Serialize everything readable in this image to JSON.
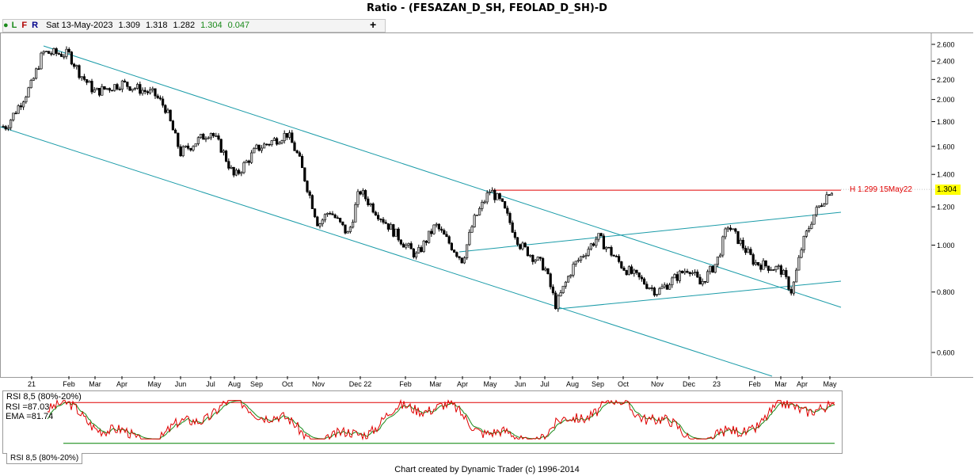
{
  "title": "Ratio - (FESAZAN_D_SH, FEOLAD_D_SH)-D",
  "infobar": {
    "lfr": [
      "L",
      "F",
      "R"
    ],
    "date": "Sat 13-May-2023",
    "open": "1.309",
    "high": "1.318",
    "low": "1.282",
    "close": "1.304",
    "change": "0.047"
  },
  "plus_label": "+",
  "high_marker": "H 1.299 15May22",
  "current_price": "1.304",
  "rsi": {
    "header": "RSI 8,5 (80%-20%)",
    "rsi_label": "RSI =87.03",
    "ema_label": "EMA =81.74",
    "tab": "RSI 8,5 (80%-20%)"
  },
  "footer": "Chart created by Dynamic Trader  (c) 1996-2014",
  "colors": {
    "bull": "#c8c8c8",
    "bear": "#000000",
    "channel": "#1a9ba8",
    "high_line": "#e00000",
    "rsi_line": "#e00000",
    "ema_line": "#1a8a1a",
    "band_high": "#e00000",
    "band_low": "#008000",
    "current": "#ffff00"
  },
  "chart_data": {
    "type": "candlestick",
    "scale": "log",
    "y_ticks": [
      "2.600",
      "2.400",
      "2.200",
      "2.000",
      "1.800",
      "1.600",
      "1.400",
      "1.200",
      "1.000",
      "0.800",
      "0.600"
    ],
    "y_tick_values": [
      2.6,
      2.4,
      2.2,
      2.0,
      1.8,
      1.6,
      1.4,
      1.2,
      1.0,
      0.8,
      0.6
    ],
    "x_labels": [
      "21",
      "Feb",
      "Mar",
      "Apr",
      "May",
      "Jun",
      "Jul",
      "Aug",
      "Sep",
      "Oct",
      "Nov",
      "Dec 22",
      "Feb",
      "Mar",
      "Apr",
      "May",
      "Jun",
      "Jul",
      "Aug",
      "Sep",
      "Oct",
      "Nov",
      "Dec",
      "23",
      "Feb",
      "Mar",
      "Apr",
      "May"
    ],
    "price_path": [
      [
        "Dec 2020",
        1.76
      ],
      [
        "Jan 2021",
        2.15
      ],
      [
        "Jan 2021",
        2.5
      ],
      [
        "Feb 2021",
        2.48
      ],
      [
        "Feb 2021",
        2.26
      ],
      [
        "Mar 2021",
        2.07
      ],
      [
        "Apr 2021",
        2.16
      ],
      [
        "May 2021",
        2.05
      ],
      [
        "May 2021",
        1.92
      ],
      [
        "Jun 2021",
        1.55
      ],
      [
        "Jul 2021",
        1.72
      ],
      [
        "Jul 2021",
        1.58
      ],
      [
        "Aug 2021",
        1.38
      ],
      [
        "Sep 2021",
        1.58
      ],
      [
        "Oct 2021",
        1.7
      ],
      [
        "Oct 2021",
        1.52
      ],
      [
        "Nov 2021",
        1.1
      ],
      [
        "Nov 2021",
        1.18
      ],
      [
        "Dec 2021",
        1.05
      ],
      [
        "Dec 2021",
        1.3
      ],
      [
        "Jan 2022",
        1.2
      ],
      [
        "Feb 2022",
        1.0
      ],
      [
        "Feb 2022",
        0.95
      ],
      [
        "Mar 2022",
        1.1
      ],
      [
        "Apr 2022",
        0.93
      ],
      [
        "Apr 2022",
        1.12
      ],
      [
        "May 2022",
        1.3
      ],
      [
        "May 2022",
        1.22
      ],
      [
        "Jun 2022",
        1.0
      ],
      [
        "Jul 2022",
        0.9
      ],
      [
        "Jul 2022",
        0.75
      ],
      [
        "Aug 2022",
        0.9
      ],
      [
        "Sep 2022",
        1.04
      ],
      [
        "Oct 2022",
        0.9
      ],
      [
        "Nov 2022",
        0.8
      ],
      [
        "Dec 2022",
        0.9
      ],
      [
        "Dec 2022",
        0.83
      ],
      [
        "Jan 2023",
        0.92
      ],
      [
        "Jan 2023",
        1.1
      ],
      [
        "Feb 2023",
        0.92
      ],
      [
        "Mar 2023",
        0.89
      ],
      [
        "Mar 2023",
        0.8
      ],
      [
        "Apr 2023",
        1.0
      ],
      [
        "Apr 2023",
        1.15
      ],
      [
        "May 2023",
        1.3
      ]
    ],
    "high_line": {
      "value": 1.299,
      "label": "H 1.299 15May22"
    },
    "current": 1.304,
    "rsi_bands": [
      80,
      20
    ]
  }
}
